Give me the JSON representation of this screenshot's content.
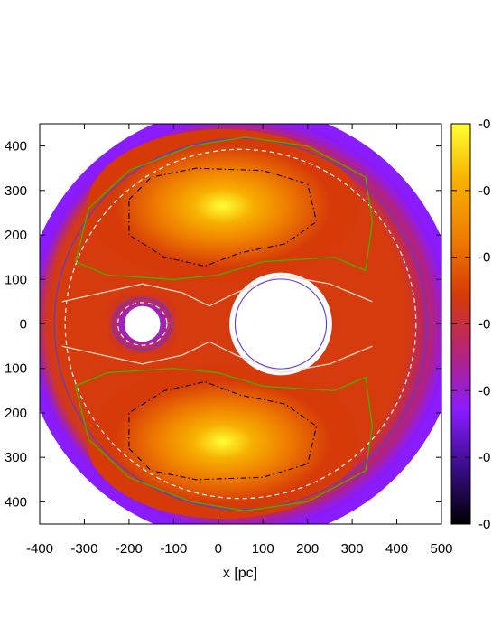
{
  "chart_data": {
    "type": "heatmap",
    "title": "",
    "xlabel": "x [pc]",
    "ylabel": "",
    "xlim": [
      -400,
      500
    ],
    "ylim": [
      -450,
      450
    ],
    "x_ticks": [
      "-400",
      "-300",
      "-200",
      "-100",
      "0",
      "100",
      "200",
      "300",
      "400",
      "500"
    ],
    "y_ticks": [
      "400",
      "300",
      "200",
      "100",
      "0",
      "100",
      "200",
      "300",
      "400"
    ],
    "colorbar_ticks": [
      "-0",
      "-0",
      "-0",
      "-0",
      "-0",
      "-0",
      "-0"
    ],
    "colormap": [
      "#000000",
      "#3a0d8a",
      "#8a1cff",
      "#b42478",
      "#d63a08",
      "#ef7d00",
      "#f7b000",
      "#ffff33"
    ],
    "outer_boundary": {
      "center": [
        50,
        0
      ],
      "radius": 490
    },
    "holes": [
      {
        "center": [
          -170,
          0
        ],
        "radius": 40
      },
      {
        "center": [
          140,
          0
        ],
        "radius": 115
      }
    ],
    "maxima": [
      {
        "center": [
          10,
          265
        ]
      },
      {
        "center": [
          10,
          -265
        ]
      }
    ],
    "contour_colors": {
      "outer_purple": "#5a3cd8",
      "green": "#44b000",
      "white_dashed": "#ffffff",
      "separatrix": "#ffd6c8",
      "black_dashdot": "#000000"
    }
  }
}
